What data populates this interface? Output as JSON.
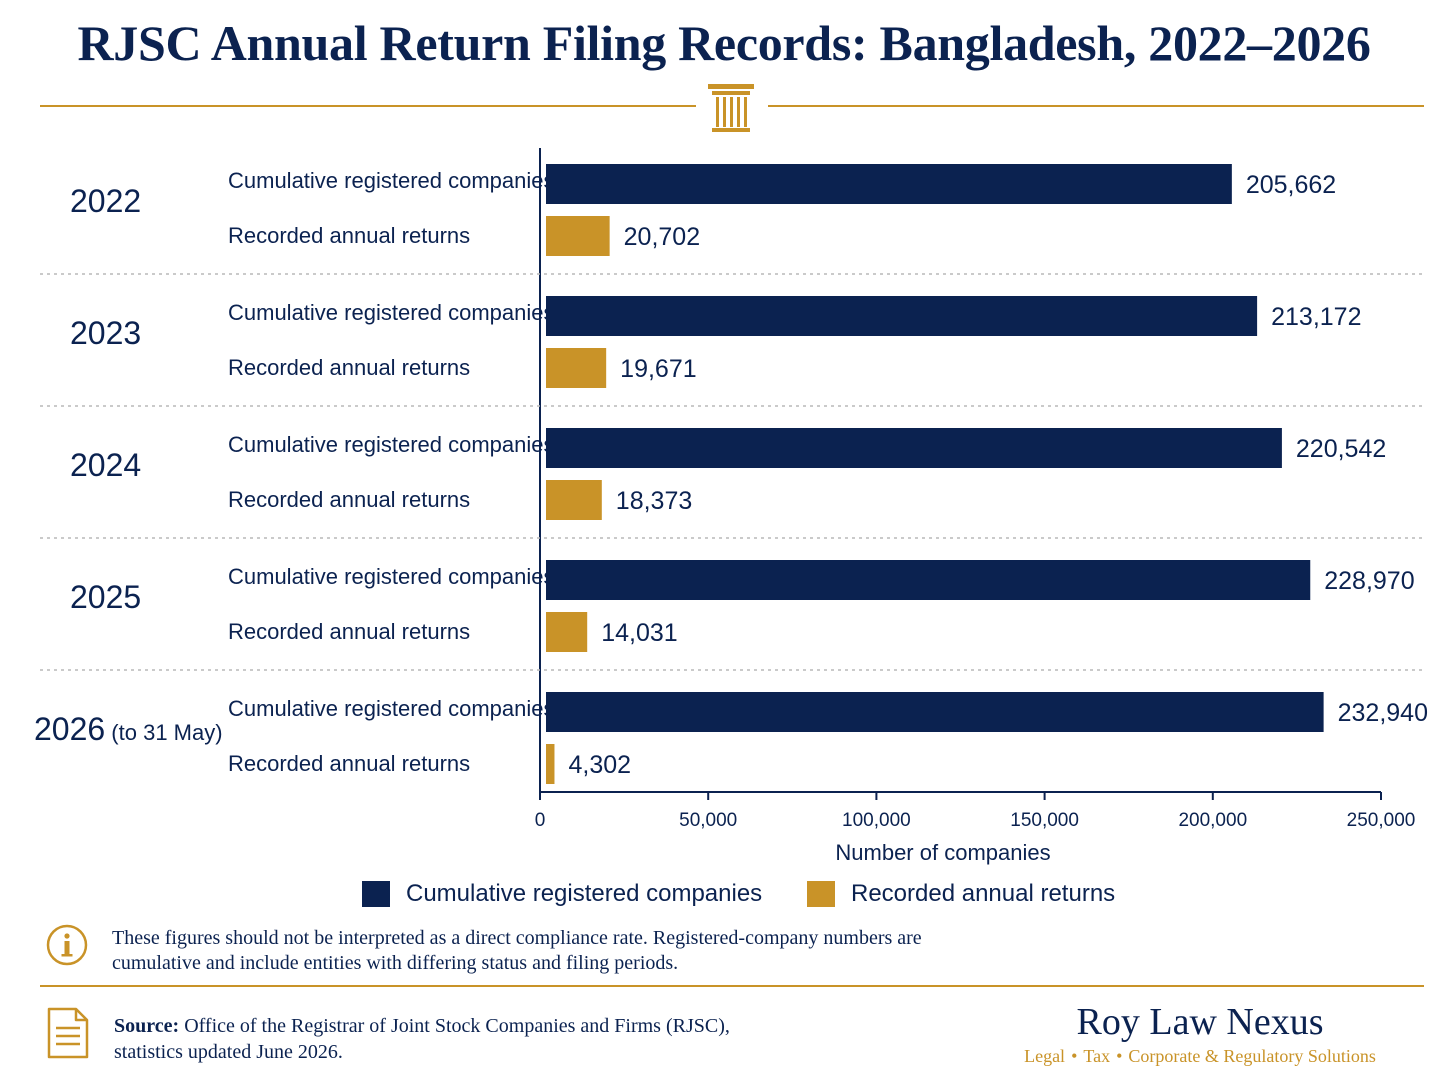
{
  "title": "RJSC Annual Return Filing Records: Bangladesh, 2022–2026",
  "colors": {
    "navy": "#0b2250",
    "gold": "#c99328"
  },
  "chart_data": {
    "type": "bar",
    "orientation": "horizontal",
    "groups": [
      {
        "label": "2022",
        "suffix": ""
      },
      {
        "label": "2023",
        "suffix": ""
      },
      {
        "label": "2024",
        "suffix": ""
      },
      {
        "label": "2025",
        "suffix": ""
      },
      {
        "label": "2026",
        "suffix": "(to 31 May)"
      }
    ],
    "series": [
      {
        "name": "Cumulative registered companies",
        "color": "#0b2250",
        "values": [
          205662,
          213172,
          220542,
          228970,
          232940
        ],
        "labels": [
          "205,662",
          "213,172",
          "220,542",
          "228,970",
          "232,940"
        ]
      },
      {
        "name": "Recorded annual returns",
        "color": "#c99328",
        "values": [
          20702,
          19671,
          18373,
          14031,
          4302
        ],
        "labels": [
          "20,702",
          "19,671",
          "18,373",
          "14,031",
          "4,302"
        ]
      }
    ],
    "xlabel": "Number of companies",
    "xlim": [
      0,
      250000
    ],
    "xticks": [
      0,
      50000,
      100000,
      150000,
      200000,
      250000
    ],
    "xtick_labels": [
      "0",
      "50,000",
      "100,000",
      "150,000",
      "200,000",
      "250,000"
    ],
    "legend_position": "bottom",
    "grid": false
  },
  "legend": {
    "item1": "Cumulative registered companies",
    "item2": "Recorded annual returns"
  },
  "note": {
    "icon": "info-icon",
    "line1": "These figures should not be interpreted as a direct compliance rate. Registered-company numbers are",
    "line2": "cumulative and include entities with differing status and filing periods."
  },
  "source": {
    "icon": "document-icon",
    "label": "Source:",
    "line1": "Office of the Registrar of Joint Stock Companies and Firms (RJSC),",
    "line2": "statistics updated June 2026."
  },
  "brand": {
    "name": "Roy Law Nexus",
    "tag1": "Legal",
    "tag2": "Tax",
    "tag3": "Corporate & Regulatory Solutions",
    "separator": "•"
  }
}
